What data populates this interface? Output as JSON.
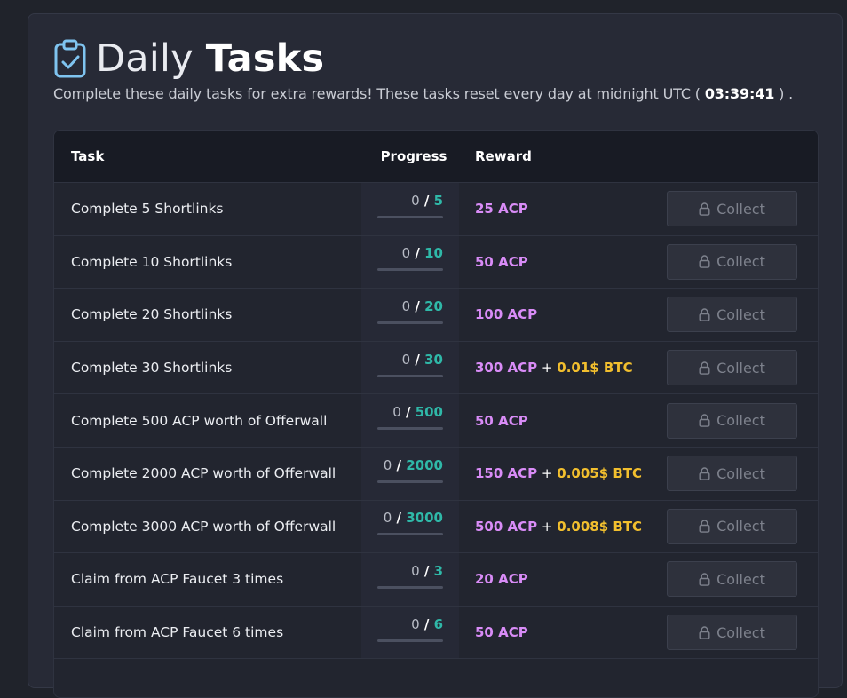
{
  "header": {
    "title_light": "Daily",
    "title_bold": "Tasks",
    "icon": "clipboard-check-icon",
    "subtitle_before": "Complete these daily tasks for extra rewards! These tasks reset every day at midnight UTC (",
    "timer": "03:39:41",
    "subtitle_after": ") ."
  },
  "table": {
    "columns": [
      "Task",
      "Progress",
      "Reward",
      ""
    ],
    "button_label": "Collect",
    "button_icon": "lock-icon",
    "rows": [
      {
        "task": "Complete 5 Shortlinks",
        "current": "0",
        "goal": "5",
        "progress": 0,
        "reward_acp": "25 ACP",
        "reward_btc": ""
      },
      {
        "task": "Complete 10 Shortlinks",
        "current": "0",
        "goal": "10",
        "progress": 0,
        "reward_acp": "50 ACP",
        "reward_btc": ""
      },
      {
        "task": "Complete 20 Shortlinks",
        "current": "0",
        "goal": "20",
        "progress": 0,
        "reward_acp": "100 ACP",
        "reward_btc": ""
      },
      {
        "task": "Complete 30 Shortlinks",
        "current": "0",
        "goal": "30",
        "progress": 0,
        "reward_acp": "300 ACP",
        "reward_btc": "0.01$ BTC"
      },
      {
        "task": "Complete 500 ACP worth of Offerwall",
        "current": "0",
        "goal": "500",
        "progress": 0,
        "reward_acp": "50 ACP",
        "reward_btc": ""
      },
      {
        "task": "Complete 2000 ACP worth of Offerwall",
        "current": "0",
        "goal": "2000",
        "progress": 0,
        "reward_acp": "150 ACP",
        "reward_btc": "0.005$ BTC"
      },
      {
        "task": "Complete 3000 ACP worth of Offerwall",
        "current": "0",
        "goal": "3000",
        "progress": 0,
        "reward_acp": "500 ACP",
        "reward_btc": "0.008$ BTC"
      },
      {
        "task": "Claim from ACP Faucet 3 times",
        "current": "0",
        "goal": "3",
        "progress": 0,
        "reward_acp": "20 ACP",
        "reward_btc": ""
      },
      {
        "task": "Claim from ACP Faucet 6 times",
        "current": "0",
        "goal": "6",
        "progress": 0,
        "reward_acp": "50 ACP",
        "reward_btc": ""
      }
    ]
  },
  "colors": {
    "accent_teal": "#2fb8a8",
    "acp_purple": "#d98cf7",
    "btc_gold": "#f2bf2e"
  }
}
